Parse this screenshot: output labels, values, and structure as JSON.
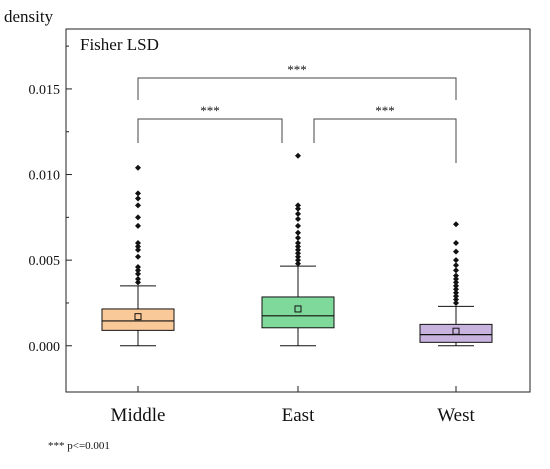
{
  "chart_data": {
    "type": "box",
    "ylabel": "density",
    "method_label": "Fisher LSD",
    "ylim": [
      -0.0027,
      0.0185
    ],
    "yticks": [
      0.0,
      0.005,
      0.01,
      0.015
    ],
    "ytick_labels": [
      "0.000",
      "0.005",
      "0.010",
      "0.015"
    ],
    "grid": false,
    "categories": [
      "Middle",
      "East",
      "West"
    ],
    "boxes": [
      {
        "name": "Middle",
        "whisker_low": 0.0,
        "q1": 0.0009,
        "median": 0.00145,
        "q3": 0.00215,
        "whisker_high": 0.0035,
        "mean": 0.0017,
        "color": "#f9c99a",
        "outliers": [
          0.0037,
          0.0039,
          0.0042,
          0.0044,
          0.0046,
          0.0052,
          0.0056,
          0.0058,
          0.006,
          0.007,
          0.0075,
          0.0082,
          0.0086,
          0.0089,
          0.0104
        ]
      },
      {
        "name": "East",
        "whisker_low": 0.0,
        "q1": 0.00105,
        "median": 0.00175,
        "q3": 0.00285,
        "whisker_high": 0.00465,
        "mean": 0.00215,
        "color": "#7fd99a",
        "outliers": [
          0.0048,
          0.005,
          0.0052,
          0.0054,
          0.0056,
          0.0058,
          0.006,
          0.0063,
          0.0066,
          0.007,
          0.0074,
          0.0077,
          0.008,
          0.0082,
          0.0111
        ]
      },
      {
        "name": "West",
        "whisker_low": 0.0,
        "q1": 0.0002,
        "median": 0.00065,
        "q3": 0.00125,
        "whisker_high": 0.0023,
        "mean": 0.00085,
        "color": "#c8b3de",
        "outliers": [
          0.0025,
          0.0027,
          0.0029,
          0.0031,
          0.0033,
          0.0035,
          0.0037,
          0.0039,
          0.0041,
          0.0044,
          0.0047,
          0.005,
          0.0055,
          0.006,
          0.0071
        ]
      }
    ],
    "comparisons": [
      {
        "from": "Middle",
        "to": "East",
        "label": "***"
      },
      {
        "from": "East",
        "to": "West",
        "label": "***"
      },
      {
        "from": "Middle",
        "to": "West",
        "label": "***"
      }
    ],
    "footnote": "*** p<=0.001"
  }
}
